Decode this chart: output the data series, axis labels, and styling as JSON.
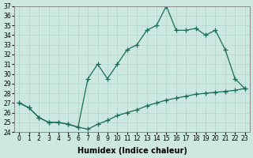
{
  "xlabel": "Humidex (Indice chaleur)",
  "background_color": "#cce8e0",
  "line_color": "#1a6b5a",
  "x_values": [
    0,
    1,
    2,
    3,
    4,
    5,
    6,
    7,
    8,
    9,
    10,
    11,
    12,
    13,
    14,
    15,
    16,
    17,
    18,
    19,
    20,
    21,
    22,
    23
  ],
  "line1_y": [
    27.0,
    26.5,
    25.5,
    25.0,
    25.0,
    24.8,
    24.5,
    24.3,
    24.8,
    25.2,
    25.7,
    26.0,
    26.3,
    26.7,
    27.0,
    27.3,
    27.5,
    27.7,
    27.9,
    28.0,
    28.1,
    28.2,
    28.3,
    28.5
  ],
  "line2_y": [
    27.0,
    26.5,
    25.5,
    25.0,
    25.0,
    24.8,
    24.5,
    29.5,
    31.0,
    29.5,
    31.0,
    32.5,
    33.0,
    34.5,
    35.0,
    37.0,
    34.5,
    34.5,
    34.7,
    34.0,
    34.5,
    32.5,
    29.5,
    28.5
  ],
  "ylim": [
    24,
    37
  ],
  "xlim": [
    -0.5,
    23.5
  ],
  "yticks": [
    24,
    25,
    26,
    27,
    28,
    29,
    30,
    31,
    32,
    33,
    34,
    35,
    36,
    37
  ],
  "xticks": [
    0,
    1,
    2,
    3,
    4,
    5,
    6,
    7,
    8,
    9,
    10,
    11,
    12,
    13,
    14,
    15,
    16,
    17,
    18,
    19,
    20,
    21,
    22,
    23
  ],
  "marker": "+",
  "markersize": 4,
  "linewidth": 0.9,
  "figsize": [
    3.2,
    2.0
  ],
  "dpi": 100,
  "tick_labelsize": 5.5,
  "xlabel_fontsize": 7,
  "grid_color": "#b0d4cc",
  "grid_linewidth": 0.5
}
